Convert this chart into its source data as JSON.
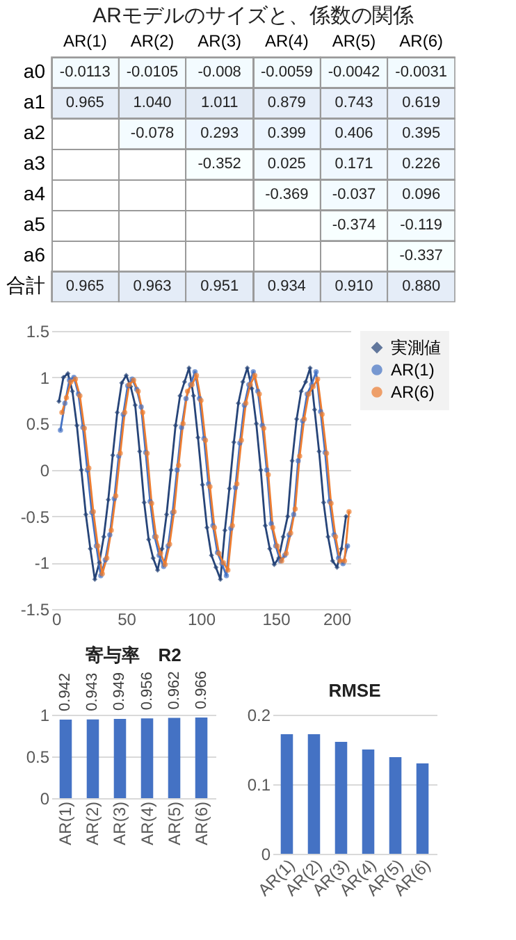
{
  "chart_data": [
    {
      "type": "heatmap",
      "title": "ARモデルのサイズと、係数の関係",
      "categories": [
        "AR(1)",
        "AR(2)",
        "AR(3)",
        "AR(4)",
        "AR(5)",
        "AR(6)"
      ],
      "y_categories": [
        "a0",
        "a1",
        "a2",
        "a3",
        "a4",
        "a5",
        "a6",
        "合計"
      ],
      "cells": [
        [
          -0.0113,
          -0.0105,
          -0.008,
          -0.0059,
          -0.0042,
          -0.0031
        ],
        [
          0.965,
          1.04,
          1.011,
          0.879,
          0.743,
          0.619
        ],
        [
          null,
          -0.078,
          0.293,
          0.399,
          0.406,
          0.395
        ],
        [
          null,
          null,
          -0.352,
          0.025,
          0.171,
          0.226
        ],
        [
          null,
          null,
          null,
          -0.369,
          -0.037,
          0.096
        ],
        [
          null,
          null,
          null,
          null,
          -0.374,
          -0.119
        ],
        [
          null,
          null,
          null,
          null,
          null,
          -0.337
        ],
        [
          0.965,
          0.963,
          0.951,
          0.934,
          0.91,
          0.88
        ]
      ],
      "cell_labels": [
        [
          "-0.0113",
          "-0.0105",
          "-0.008",
          "-0.0059",
          "-0.0042",
          "-0.0031"
        ],
        [
          "0.965",
          "1.040",
          "1.011",
          "0.879",
          "0.743",
          "0.619"
        ],
        [
          null,
          "-0.078",
          "0.293",
          "0.399",
          "0.406",
          "0.395"
        ],
        [
          null,
          null,
          "-0.352",
          "0.025",
          "0.171",
          "0.226"
        ],
        [
          null,
          null,
          null,
          "-0.369",
          "-0.037",
          "0.096"
        ],
        [
          null,
          null,
          null,
          null,
          "-0.374",
          "-0.119"
        ],
        [
          null,
          null,
          null,
          null,
          null,
          "-0.337"
        ],
        [
          "0.965",
          "0.963",
          "0.951",
          "0.934",
          "0.910",
          "0.880"
        ]
      ]
    },
    {
      "type": "line",
      "xlim": [
        0,
        200
      ],
      "xticks": [
        0,
        50,
        100,
        150,
        200
      ],
      "ylim": [
        -1.5,
        1.5
      ],
      "yticks": [
        -1.5,
        -1,
        -0.5,
        0,
        0.5,
        1,
        1.5
      ],
      "grid": "y",
      "legend": "top right",
      "marker": "circle",
      "series": [
        {
          "name": "実測値",
          "color": "#264478",
          "marker": "diamond",
          "x": [
            5,
            8,
            11,
            14,
            17,
            20,
            23,
            26,
            29,
            32,
            35,
            38,
            41,
            44,
            47,
            50,
            53,
            56,
            59,
            62,
            65,
            68,
            71,
            74,
            77,
            80,
            83,
            86,
            89,
            92,
            95,
            98,
            101,
            104,
            107,
            110,
            113,
            116,
            119,
            122,
            125,
            128,
            131,
            134,
            137,
            140,
            143,
            146,
            149,
            152,
            155,
            158,
            161,
            164,
            167,
            170,
            173,
            176,
            179,
            182,
            185,
            188,
            191,
            194,
            197
          ],
          "values": [
            0.74,
            1.0,
            1.04,
            0.85,
            0.48,
            0,
            -0.48,
            -0.85,
            -1.18,
            -1.0,
            -0.72,
            -0.32,
            0.16,
            0.62,
            0.94,
            1.02,
            0.9,
            0.7,
            0.2,
            -0.35,
            -0.75,
            -0.95,
            -1.08,
            -0.85,
            -0.48,
            0,
            0.48,
            0.8,
            0.95,
            1.1,
            0.8,
            0.35,
            -0.16,
            -0.62,
            -0.92,
            -1.05,
            -1.18,
            -0.65,
            -0.2,
            0.3,
            0.72,
            0.95,
            1.1,
            0.88,
            0.5,
            0,
            -0.6,
            -0.85,
            -1.02,
            -0.95,
            -0.72,
            -0.5,
            0.1,
            0.55,
            0.85,
            0.95,
            1.1,
            0.65,
            0.2,
            -0.35,
            -0.72,
            -0.98,
            -1.05,
            -0.85,
            -0.5
          ]
        },
        {
          "name": "AR(1)",
          "color": "#4472c4",
          "x": [
            6,
            9,
            12,
            15,
            18,
            21,
            24,
            27,
            30,
            33,
            36,
            39,
            42,
            45,
            48,
            51,
            54,
            57,
            60,
            63,
            66,
            69,
            72,
            75,
            78,
            81,
            84,
            87,
            90,
            93,
            96,
            99,
            102,
            105,
            108,
            111,
            114,
            117,
            120,
            123,
            126,
            129,
            132,
            135,
            138,
            141,
            144,
            147,
            150,
            153,
            156,
            159,
            162,
            165,
            168,
            171,
            174,
            177,
            180,
            183,
            186,
            189,
            192,
            195,
            198
          ],
          "values": [
            0.43,
            0.72,
            0.97,
            1.0,
            0.82,
            0.46,
            0,
            -0.46,
            -0.82,
            -1.14,
            -0.97,
            -0.7,
            -0.31,
            0.15,
            0.6,
            0.91,
            0.98,
            0.87,
            0.68,
            0.19,
            -0.34,
            -0.72,
            -0.92,
            -1.04,
            -0.82,
            -0.46,
            0,
            0.46,
            0.77,
            0.92,
            1.06,
            0.77,
            0.34,
            -0.15,
            -0.6,
            -0.89,
            -1.01,
            -1.14,
            -0.63,
            -0.19,
            0.29,
            0.7,
            0.92,
            1.06,
            0.85,
            0.48,
            0,
            -0.58,
            -0.82,
            -0.98,
            -0.92,
            -0.7,
            -0.48,
            0.1,
            0.53,
            0.82,
            0.92,
            1.06,
            0.63,
            0.19,
            -0.34,
            -0.7,
            -0.95,
            -1.01,
            -0.82
          ]
        },
        {
          "name": "AR(6)",
          "color": "#ed7d31",
          "x": [
            7,
            10,
            13,
            16,
            19,
            22,
            25,
            28,
            31,
            34,
            37,
            40,
            43,
            46,
            49,
            52,
            55,
            58,
            61,
            64,
            67,
            70,
            73,
            76,
            79,
            82,
            85,
            88,
            91,
            94,
            97,
            100,
            103,
            106,
            109,
            112,
            115,
            118,
            121,
            124,
            127,
            130,
            133,
            136,
            139,
            142,
            145,
            148,
            151,
            154,
            157,
            160,
            163,
            166,
            169,
            172,
            175,
            178,
            181,
            184,
            187,
            190,
            193,
            196,
            199
          ],
          "values": [
            0.62,
            0.78,
            0.95,
            0.98,
            0.8,
            0.45,
            0.02,
            -0.45,
            -0.82,
            -1.12,
            -0.95,
            -0.65,
            -0.28,
            0.18,
            0.62,
            0.92,
            0.97,
            0.85,
            0.62,
            0.18,
            -0.36,
            -0.72,
            -0.9,
            -1.02,
            -0.8,
            -0.45,
            0.05,
            0.5,
            0.85,
            0.92,
            1.02,
            0.75,
            0.32,
            -0.18,
            -0.62,
            -0.9,
            -1.0,
            -1.08,
            -0.6,
            -0.15,
            0.32,
            0.72,
            0.92,
            1.02,
            0.82,
            0.45,
            -0.05,
            -0.62,
            -0.82,
            -0.98,
            -0.9,
            -0.68,
            -0.42,
            0.15,
            0.55,
            0.82,
            0.9,
            0.98,
            0.6,
            0.18,
            -0.36,
            -0.72,
            -0.98,
            -0.98,
            -0.45
          ]
        }
      ]
    },
    {
      "type": "bar",
      "title": "寄与率　R2",
      "categories": [
        "AR(1)",
        "AR(2)",
        "AR(3)",
        "AR(4)",
        "AR(5)",
        "AR(6)"
      ],
      "values": [
        0.942,
        0.943,
        0.949,
        0.956,
        0.962,
        0.966
      ],
      "color": "#4472c4",
      "ylim": [
        0,
        1
      ],
      "yticks": [
        0,
        0.5,
        1
      ],
      "grid": "y",
      "data_labels": true
    },
    {
      "type": "bar",
      "title": "RMSE",
      "categories": [
        "AR(1)",
        "AR(2)",
        "AR(3)",
        "AR(4)",
        "AR(5)",
        "AR(6)"
      ],
      "values": [
        0.172,
        0.172,
        0.161,
        0.15,
        0.139,
        0.13
      ],
      "color": "#4472c4",
      "ylim": [
        0,
        0.2
      ],
      "yticks": [
        0,
        0.1,
        0.2
      ],
      "grid": "y"
    }
  ]
}
